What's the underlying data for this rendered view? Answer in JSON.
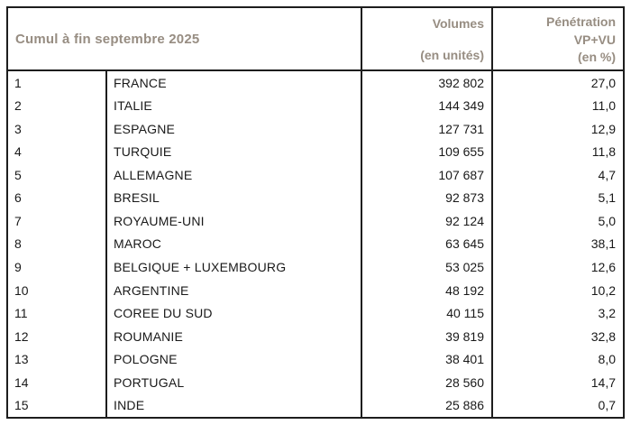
{
  "colors": {
    "header_text": "#978d82",
    "body_text": "#191919",
    "border": "#1d1d1d",
    "background": "#ffffff"
  },
  "table": {
    "title": "Cumul à fin septembre 2025",
    "columns": {
      "volumes": {
        "line1": "Volumes",
        "line2": "(en unités)"
      },
      "penetration": {
        "line1": "Pénétration",
        "line2": "VP+VU",
        "line3": "(en %)"
      }
    },
    "rows": [
      {
        "rank": "1",
        "country": "FRANCE",
        "volume": "392 802",
        "penetration": "27,0"
      },
      {
        "rank": "2",
        "country": "ITALIE",
        "volume": "144 349",
        "penetration": "11,0"
      },
      {
        "rank": "3",
        "country": "ESPAGNE",
        "volume": "127 731",
        "penetration": "12,9"
      },
      {
        "rank": "4",
        "country": "TURQUIE",
        "volume": "109 655",
        "penetration": "11,8"
      },
      {
        "rank": "5",
        "country": "ALLEMAGNE",
        "volume": "107 687",
        "penetration": "4,7"
      },
      {
        "rank": "6",
        "country": "BRESIL",
        "volume": "92 873",
        "penetration": "5,1"
      },
      {
        "rank": "7",
        "country": "ROYAUME-UNI",
        "volume": "92 124",
        "penetration": "5,0"
      },
      {
        "rank": "8",
        "country": "MAROC",
        "volume": "63 645",
        "penetration": "38,1"
      },
      {
        "rank": "9",
        "country": "BELGIQUE + LUXEMBOURG",
        "volume": "53 025",
        "penetration": "12,6"
      },
      {
        "rank": "10",
        "country": "ARGENTINE",
        "volume": "48 192",
        "penetration": "10,2"
      },
      {
        "rank": "11",
        "country": "COREE DU SUD",
        "volume": "40 115",
        "penetration": "3,2"
      },
      {
        "rank": "12",
        "country": "ROUMANIE",
        "volume": "39 819",
        "penetration": "32,8"
      },
      {
        "rank": "13",
        "country": "POLOGNE",
        "volume": "38 401",
        "penetration": "8,0"
      },
      {
        "rank": "14",
        "country": "PORTUGAL",
        "volume": "28 560",
        "penetration": "14,7"
      },
      {
        "rank": "15",
        "country": "INDE",
        "volume": "25 886",
        "penetration": "0,7"
      }
    ]
  }
}
